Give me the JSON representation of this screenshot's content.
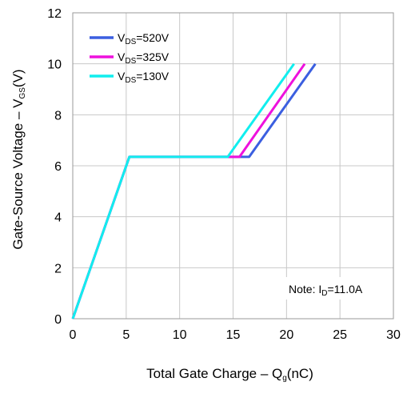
{
  "chart_data": {
    "type": "line",
    "title": "",
    "xlabel": {
      "main": "Total Gate Charge – Q",
      "sub": "g",
      "tail": "(nC)"
    },
    "ylabel": {
      "main": "Gate-Source Voltage – V",
      "sub": "GS",
      "tail": "(V)"
    },
    "xlim": [
      0,
      30
    ],
    "ylim": [
      0,
      12
    ],
    "xticks": [
      0,
      5,
      10,
      15,
      20,
      25,
      30
    ],
    "yticks": [
      0,
      2,
      4,
      6,
      8,
      10,
      12
    ],
    "grid": true,
    "legend_position": "top-left",
    "series": [
      {
        "name": "VDS=520V",
        "label": {
          "main": "V",
          "sub": "DS",
          "tail": "=520V"
        },
        "color": "#3b5fe0",
        "points": [
          [
            0,
            0
          ],
          [
            5.3,
            6.35
          ],
          [
            16.5,
            6.35
          ],
          [
            22.7,
            10.0
          ]
        ]
      },
      {
        "name": "VDS=325V",
        "label": {
          "main": "V",
          "sub": "DS",
          "tail": "=325V"
        },
        "color": "#ee11dd",
        "points": [
          [
            0,
            0
          ],
          [
            5.3,
            6.35
          ],
          [
            15.6,
            6.35
          ],
          [
            21.7,
            10.0
          ]
        ]
      },
      {
        "name": "VDS=130V",
        "label": {
          "main": "V",
          "sub": "DS",
          "tail": "=130V"
        },
        "color": "#11eeee",
        "points": [
          [
            0,
            0
          ],
          [
            5.3,
            6.35
          ],
          [
            14.5,
            6.35
          ],
          [
            20.7,
            10.0
          ]
        ]
      }
    ],
    "annotations": [
      {
        "id": "note",
        "main": "Note: I",
        "sub": "D",
        "tail": "=11.0A"
      }
    ]
  }
}
